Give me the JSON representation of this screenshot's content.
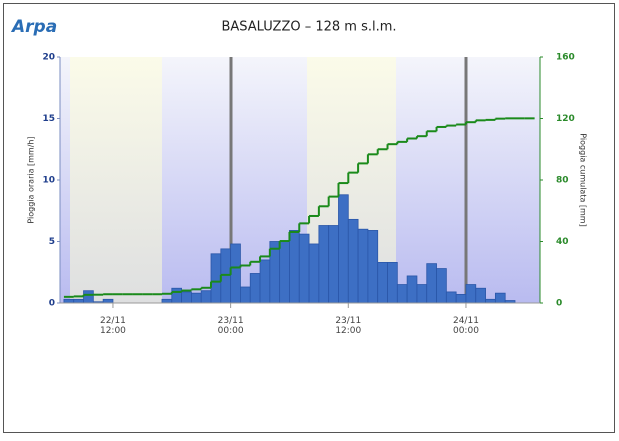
{
  "logo": "Arpa",
  "chart_data": {
    "type": "step",
    "title": "BASALUZZO – 128 m s.l.m.",
    "y_label": "Pioggia oraria [mm/h]",
    "y2_label": "Pioggia cumulata [mm]",
    "x": [
      "22/11 07:00",
      "22/11 08:00",
      "22/11 09:00",
      "22/11 10:00",
      "22/11 11:00",
      "22/11 12:00",
      "22/11 13:00",
      "22/11 14:00",
      "22/11 15:00",
      "22/11 16:00",
      "22/11 17:00",
      "22/11 18:00",
      "22/11 19:00",
      "22/11 20:00",
      "22/11 21:00",
      "22/11 22:00",
      "22/11 23:00",
      "23/11 00:00",
      "23/11 01:00",
      "23/11 02:00",
      "23/11 03:00",
      "23/11 04:00",
      "23/11 05:00",
      "23/11 06:00",
      "23/11 07:00",
      "23/11 08:00",
      "23/11 09:00",
      "23/11 10:00",
      "23/11 11:00",
      "23/11 12:00",
      "23/11 13:00",
      "23/11 14:00",
      "23/11 15:00",
      "23/11 16:00",
      "23/11 17:00",
      "23/11 18:00",
      "23/11 19:00",
      "23/11 20:00",
      "23/11 21:00",
      "23/11 22:00",
      "23/11 23:00",
      "24/11 00:00",
      "24/11 01:00",
      "24/11 02:00",
      "24/11 03:00",
      "24/11 04:00",
      "24/11 05:00",
      "24/11 06:00"
    ],
    "series": [
      {
        "name": "Pioggia oraria",
        "color": "#3d6fc4",
        "axis": "y",
        "values": [
          0.3,
          0.3,
          1.0,
          0.1,
          0.3,
          0,
          0,
          0,
          0,
          0,
          0.3,
          1.2,
          0.9,
          0.8,
          1.0,
          4.0,
          4.4,
          4.8,
          1.3,
          2.4,
          3.5,
          5.0,
          5.0,
          5.9,
          5.6,
          4.8,
          6.3,
          6.3,
          8.8,
          6.8,
          6.0,
          5.9,
          3.3,
          3.3,
          1.5,
          2.2,
          1.5,
          3.2,
          2.8,
          0.9,
          0.7,
          1.5,
          1.2,
          0.3,
          0.8,
          0.2,
          0,
          0
        ]
      },
      {
        "name": "Pioggia cumulata",
        "color": "#1a8a1a",
        "axis": "y2",
        "values": [
          4,
          4.3,
          5.3,
          5.4,
          5.7,
          5.7,
          5.7,
          5.7,
          5.7,
          5.7,
          6,
          7.2,
          8.1,
          8.9,
          9.9,
          13.9,
          18.3,
          23.1,
          24.4,
          26.8,
          30.3,
          35.3,
          40.3,
          46.2,
          51.8,
          56.6,
          62.9,
          69.2,
          78,
          84.8,
          90.8,
          96.7,
          100,
          103.3,
          104.8,
          107,
          108.5,
          111.7,
          114.5,
          115.4,
          116.1,
          117.6,
          118.8,
          119.1,
          119.9,
          120.1,
          120.1,
          120.1
        ]
      }
    ],
    "xlim": [
      "22/11 06:36",
      "24/11 07:33"
    ],
    "xticks": [
      "22/11 12:00",
      "23/11 00:00",
      "23/11 12:00",
      "24/11 00:00"
    ],
    "ylim": [
      0,
      20
    ],
    "yticks": [
      0,
      5,
      10,
      15,
      20
    ],
    "y2lim": [
      0,
      160
    ],
    "y2ticks": [
      0,
      40,
      80,
      120,
      160
    ]
  }
}
